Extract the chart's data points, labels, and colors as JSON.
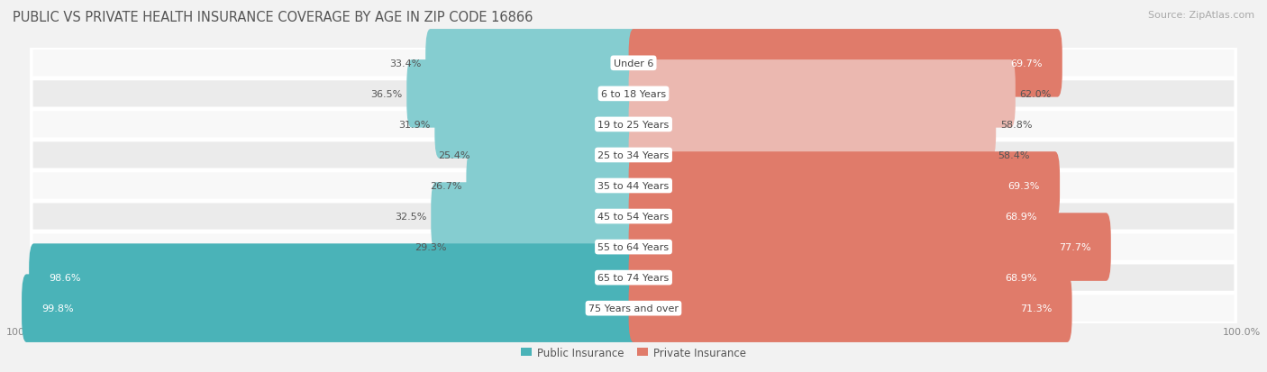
{
  "title": "Public vs Private Health Insurance Coverage by Age in Zip Code 16866",
  "source": "Source: ZipAtlas.com",
  "categories": [
    "Under 6",
    "6 to 18 Years",
    "19 to 25 Years",
    "25 to 34 Years",
    "35 to 44 Years",
    "45 to 54 Years",
    "55 to 64 Years",
    "65 to 74 Years",
    "75 Years and over"
  ],
  "public_values": [
    33.4,
    36.5,
    31.9,
    25.4,
    26.7,
    32.5,
    29.3,
    98.6,
    99.8
  ],
  "private_values": [
    69.7,
    62.0,
    58.8,
    58.4,
    69.3,
    68.9,
    77.7,
    68.9,
    71.3
  ],
  "public_color_dark": "#4ab3b8",
  "public_color_light": "#85cdd0",
  "private_color_dark": "#e07b6a",
  "private_color_light": "#ebb8b0",
  "bg_color": "#f2f2f2",
  "row_bg_light": "#f8f8f8",
  "row_bg_mid": "#ebebeb",
  "sep_color": "#ffffff",
  "label_white": "#ffffff",
  "label_dark": "#555555",
  "title_color": "#555555",
  "source_color": "#aaaaaa",
  "title_fontsize": 10.5,
  "source_fontsize": 8,
  "bar_label_fontsize": 8,
  "cat_label_fontsize": 8,
  "axis_label_fontsize": 8,
  "legend_fontsize": 8.5
}
